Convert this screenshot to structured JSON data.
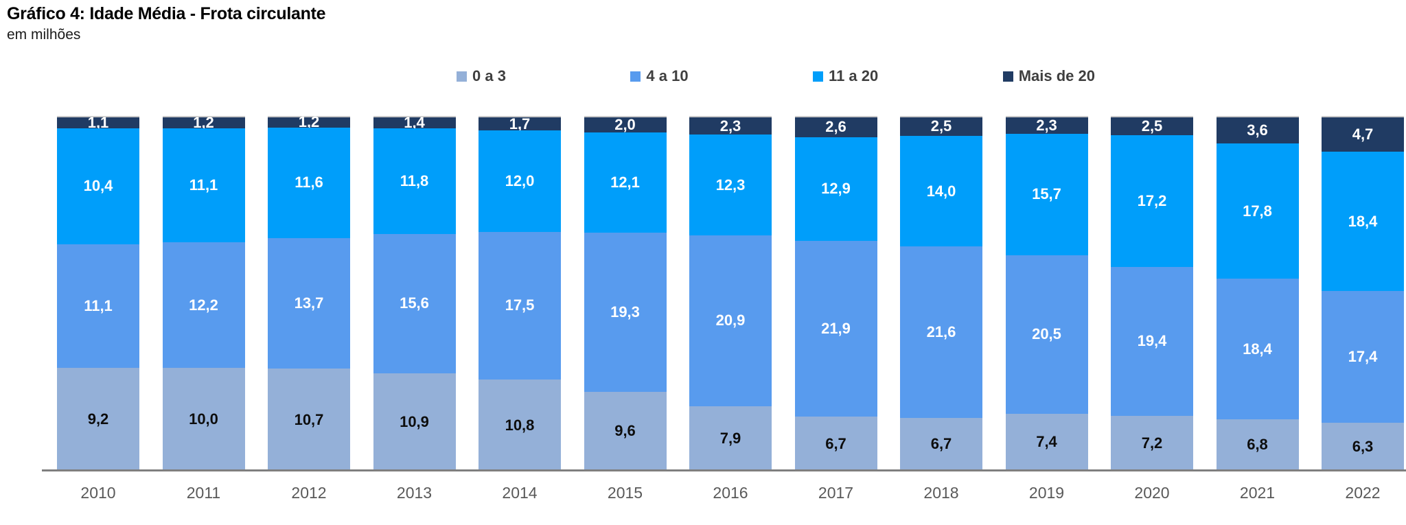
{
  "title": "Gráfico 4: Idade Média - Frota circulante",
  "subtitle": "em milhões",
  "chart_data": {
    "type": "bar",
    "variant": "stacked-100-height-absolute-labels",
    "title": "Gráfico 4: Idade Média - Frota circulante",
    "subtitle": "em milhões",
    "legend_position": "top",
    "grid": false,
    "value_format": "one-decimal-comma",
    "categories": [
      "2010",
      "2011",
      "2012",
      "2013",
      "2014",
      "2015",
      "2016",
      "2017",
      "2018",
      "2019",
      "2020",
      "2021",
      "2022"
    ],
    "series": [
      {
        "name": "0 a 3",
        "color": "#94b0d8",
        "label_color": "#0d0d0d",
        "values": [
          9.2,
          10.0,
          10.7,
          10.9,
          10.8,
          9.6,
          7.9,
          6.7,
          6.7,
          7.4,
          7.2,
          6.8,
          6.3
        ]
      },
      {
        "name": "4 a 10",
        "color": "#589bee",
        "label_color": "#ffffff",
        "values": [
          11.1,
          12.2,
          13.7,
          15.6,
          17.5,
          19.3,
          20.9,
          21.9,
          21.6,
          20.5,
          19.4,
          18.4,
          17.4
        ]
      },
      {
        "name": "11 a 20",
        "color": "#009efa",
        "label_color": "#ffffff",
        "values": [
          10.4,
          11.1,
          11.6,
          11.8,
          12.0,
          12.1,
          12.3,
          12.9,
          14.0,
          15.7,
          17.2,
          17.8,
          18.4
        ]
      },
      {
        "name": "Mais de 20",
        "color": "#203b63",
        "label_color": "#ffffff",
        "values": [
          1.1,
          1.2,
          1.2,
          1.4,
          1.7,
          2.0,
          2.3,
          2.6,
          2.5,
          2.3,
          2.5,
          3.6,
          4.7
        ]
      }
    ],
    "colors": {
      "axis_line": "#7f7f7f",
      "year_label": "#595959",
      "legend_label": "#3f3f3f",
      "bar_top_cap": "#c9c9c9"
    }
  }
}
